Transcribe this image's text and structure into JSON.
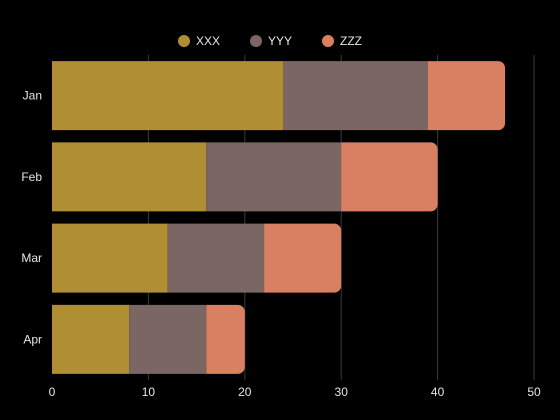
{
  "chart_data": {
    "type": "bar",
    "orientation": "horizontal",
    "stacked": true,
    "title": "",
    "xlabel": "",
    "ylabel": "",
    "categories": [
      "Jan",
      "Feb",
      "Mar",
      "Apr"
    ],
    "series": [
      {
        "name": "XXX",
        "color": "#B08E33",
        "values": [
          24,
          16,
          12,
          8
        ]
      },
      {
        "name": "YYY",
        "color": "#7A6764",
        "values": [
          15,
          14,
          10,
          8
        ]
      },
      {
        "name": "ZZZ",
        "color": "#D97F62",
        "values": [
          8,
          10,
          8,
          4
        ]
      }
    ],
    "xlim": [
      0,
      50
    ],
    "xticks": [
      0,
      10,
      20,
      30,
      40,
      50
    ],
    "grid": "vertical",
    "legend_position": "top-center",
    "background": "#000000"
  }
}
